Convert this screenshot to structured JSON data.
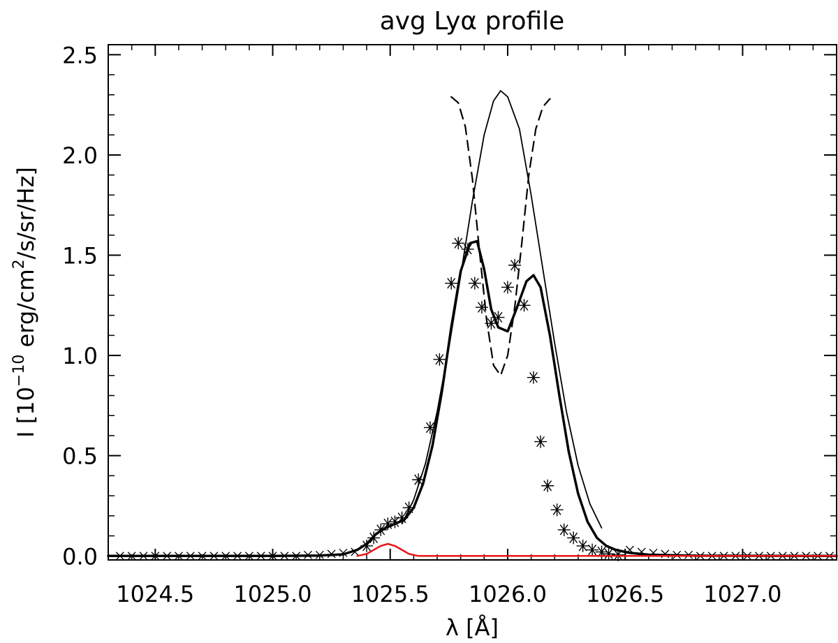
{
  "chart_data": {
    "type": "line",
    "title": "avg Lyα profile",
    "xlabel": "λ [Å]",
    "ylabel_parts": [
      "I [10",
      "−10",
      " erg/cm",
      "2",
      "/s/sr/Hz]"
    ],
    "xlim": [
      1024.3,
      1027.4
    ],
    "ylim": [
      -0.02,
      2.55
    ],
    "xticks": [
      1024.5,
      1025.0,
      1025.5,
      1026.0,
      1026.5,
      1027.0
    ],
    "xtick_labels": [
      "1024.5",
      "1025.0",
      "1025.5",
      "1026.0",
      "1026.5",
      "1027.0"
    ],
    "yticks": [
      0.0,
      0.5,
      1.0,
      1.5,
      2.0,
      2.5
    ],
    "ytick_labels": [
      "0.0",
      "0.5",
      "1.0",
      "1.5",
      "2.0",
      "2.5"
    ],
    "grid": false,
    "series": [
      {
        "style": "observed-asterisks",
        "color": "#000000",
        "x": [
          1025.4,
          1025.43,
          1025.46,
          1025.49,
          1025.52,
          1025.55,
          1025.58,
          1025.62,
          1025.67,
          1025.71,
          1025.76,
          1025.79,
          1025.83,
          1025.86,
          1025.89,
          1025.93,
          1025.96,
          1026.0,
          1026.03,
          1026.07,
          1026.11,
          1026.14,
          1026.17,
          1026.21,
          1026.24,
          1026.28,
          1026.32,
          1026.36,
          1026.4,
          1026.43,
          1026.47
        ],
        "y": [
          0.05,
          0.09,
          0.13,
          0.16,
          0.17,
          0.19,
          0.24,
          0.38,
          0.64,
          0.98,
          1.36,
          1.56,
          1.53,
          1.36,
          1.24,
          1.16,
          1.19,
          1.34,
          1.45,
          1.25,
          0.89,
          0.57,
          0.35,
          0.23,
          0.13,
          0.09,
          0.05,
          0.03,
          0.02,
          0.01,
          0.005
        ]
      },
      {
        "style": "wing-crosses",
        "color": "#000000",
        "x": [
          1024.35,
          1024.4,
          1024.45,
          1024.5,
          1024.55,
          1024.6,
          1024.65,
          1024.7,
          1024.75,
          1024.8,
          1024.85,
          1024.9,
          1024.95,
          1025.0,
          1025.05,
          1025.1,
          1025.15,
          1025.2,
          1025.25,
          1025.3,
          1025.35,
          1026.52,
          1026.57,
          1026.62,
          1026.67,
          1026.72,
          1026.77,
          1026.82,
          1026.87,
          1026.92,
          1026.97,
          1027.02,
          1027.07,
          1027.12,
          1027.17,
          1027.22,
          1027.27,
          1027.32,
          1027.37
        ],
        "y": [
          0.0,
          0.0,
          0.0,
          0.0,
          0.0,
          0.0,
          0.0,
          0.0,
          0.0,
          0.0,
          0.0,
          0.0,
          0.0,
          0.0,
          0.0,
          0.0,
          0.005,
          0.005,
          0.01,
          0.015,
          0.02,
          0.03,
          0.02,
          0.015,
          0.01,
          0.005,
          0.005,
          0.0,
          0.0,
          0.0,
          0.0,
          0.0,
          0.0,
          0.0,
          0.0,
          0.0,
          0.0,
          0.0,
          0.0
        ]
      },
      {
        "style": "fit-thick",
        "color": "#000000",
        "x": [
          1024.3,
          1024.7,
          1025.0,
          1025.2,
          1025.3,
          1025.36,
          1025.4,
          1025.44,
          1025.48,
          1025.52,
          1025.56,
          1025.6,
          1025.64,
          1025.68,
          1025.72,
          1025.76,
          1025.8,
          1025.84,
          1025.87,
          1025.9,
          1025.93,
          1025.96,
          1026.0,
          1026.04,
          1026.08,
          1026.11,
          1026.14,
          1026.18,
          1026.22,
          1026.26,
          1026.3,
          1026.34,
          1026.38,
          1026.42,
          1026.46,
          1026.52,
          1026.6,
          1026.8,
          1027.4
        ],
        "y": [
          0.0,
          0.0,
          0.0,
          0.002,
          0.008,
          0.03,
          0.06,
          0.11,
          0.14,
          0.16,
          0.18,
          0.24,
          0.36,
          0.55,
          0.82,
          1.14,
          1.42,
          1.56,
          1.57,
          1.43,
          1.23,
          1.14,
          1.12,
          1.24,
          1.37,
          1.4,
          1.34,
          1.1,
          0.8,
          0.52,
          0.31,
          0.17,
          0.09,
          0.05,
          0.03,
          0.015,
          0.006,
          0.001,
          0.0
        ]
      },
      {
        "style": "gaussian-thin",
        "color": "#000000",
        "x": [
          1025.55,
          1025.6,
          1025.65,
          1025.7,
          1025.75,
          1025.8,
          1025.85,
          1025.9,
          1025.94,
          1025.97,
          1026.0,
          1026.05,
          1026.1,
          1026.15,
          1026.2,
          1026.25,
          1026.3,
          1026.35,
          1026.4
        ],
        "y": [
          0.16,
          0.28,
          0.46,
          0.72,
          1.04,
          1.4,
          1.77,
          2.1,
          2.27,
          2.32,
          2.29,
          2.13,
          1.8,
          1.43,
          1.06,
          0.72,
          0.45,
          0.26,
          0.14
        ]
      },
      {
        "style": "absorption-dashed",
        "color": "#000000",
        "x": [
          1025.76,
          1025.79,
          1025.82,
          1025.85,
          1025.88,
          1025.91,
          1025.94,
          1025.97,
          1026.0,
          1026.03,
          1026.06,
          1026.09,
          1026.12,
          1026.15,
          1026.18
        ],
        "y": [
          2.29,
          2.26,
          2.14,
          1.88,
          1.52,
          1.18,
          0.95,
          0.9,
          1.0,
          1.24,
          1.56,
          1.9,
          2.13,
          2.24,
          2.28
        ]
      },
      {
        "style": "red-component",
        "color": "#e8141a",
        "x": [
          1025.36,
          1025.4,
          1025.43,
          1025.46,
          1025.49,
          1025.52,
          1025.55,
          1025.58,
          1025.62,
          1027.4
        ],
        "y": [
          0.0,
          0.01,
          0.03,
          0.05,
          0.06,
          0.05,
          0.03,
          0.01,
          0.0,
          0.0
        ]
      }
    ]
  }
}
